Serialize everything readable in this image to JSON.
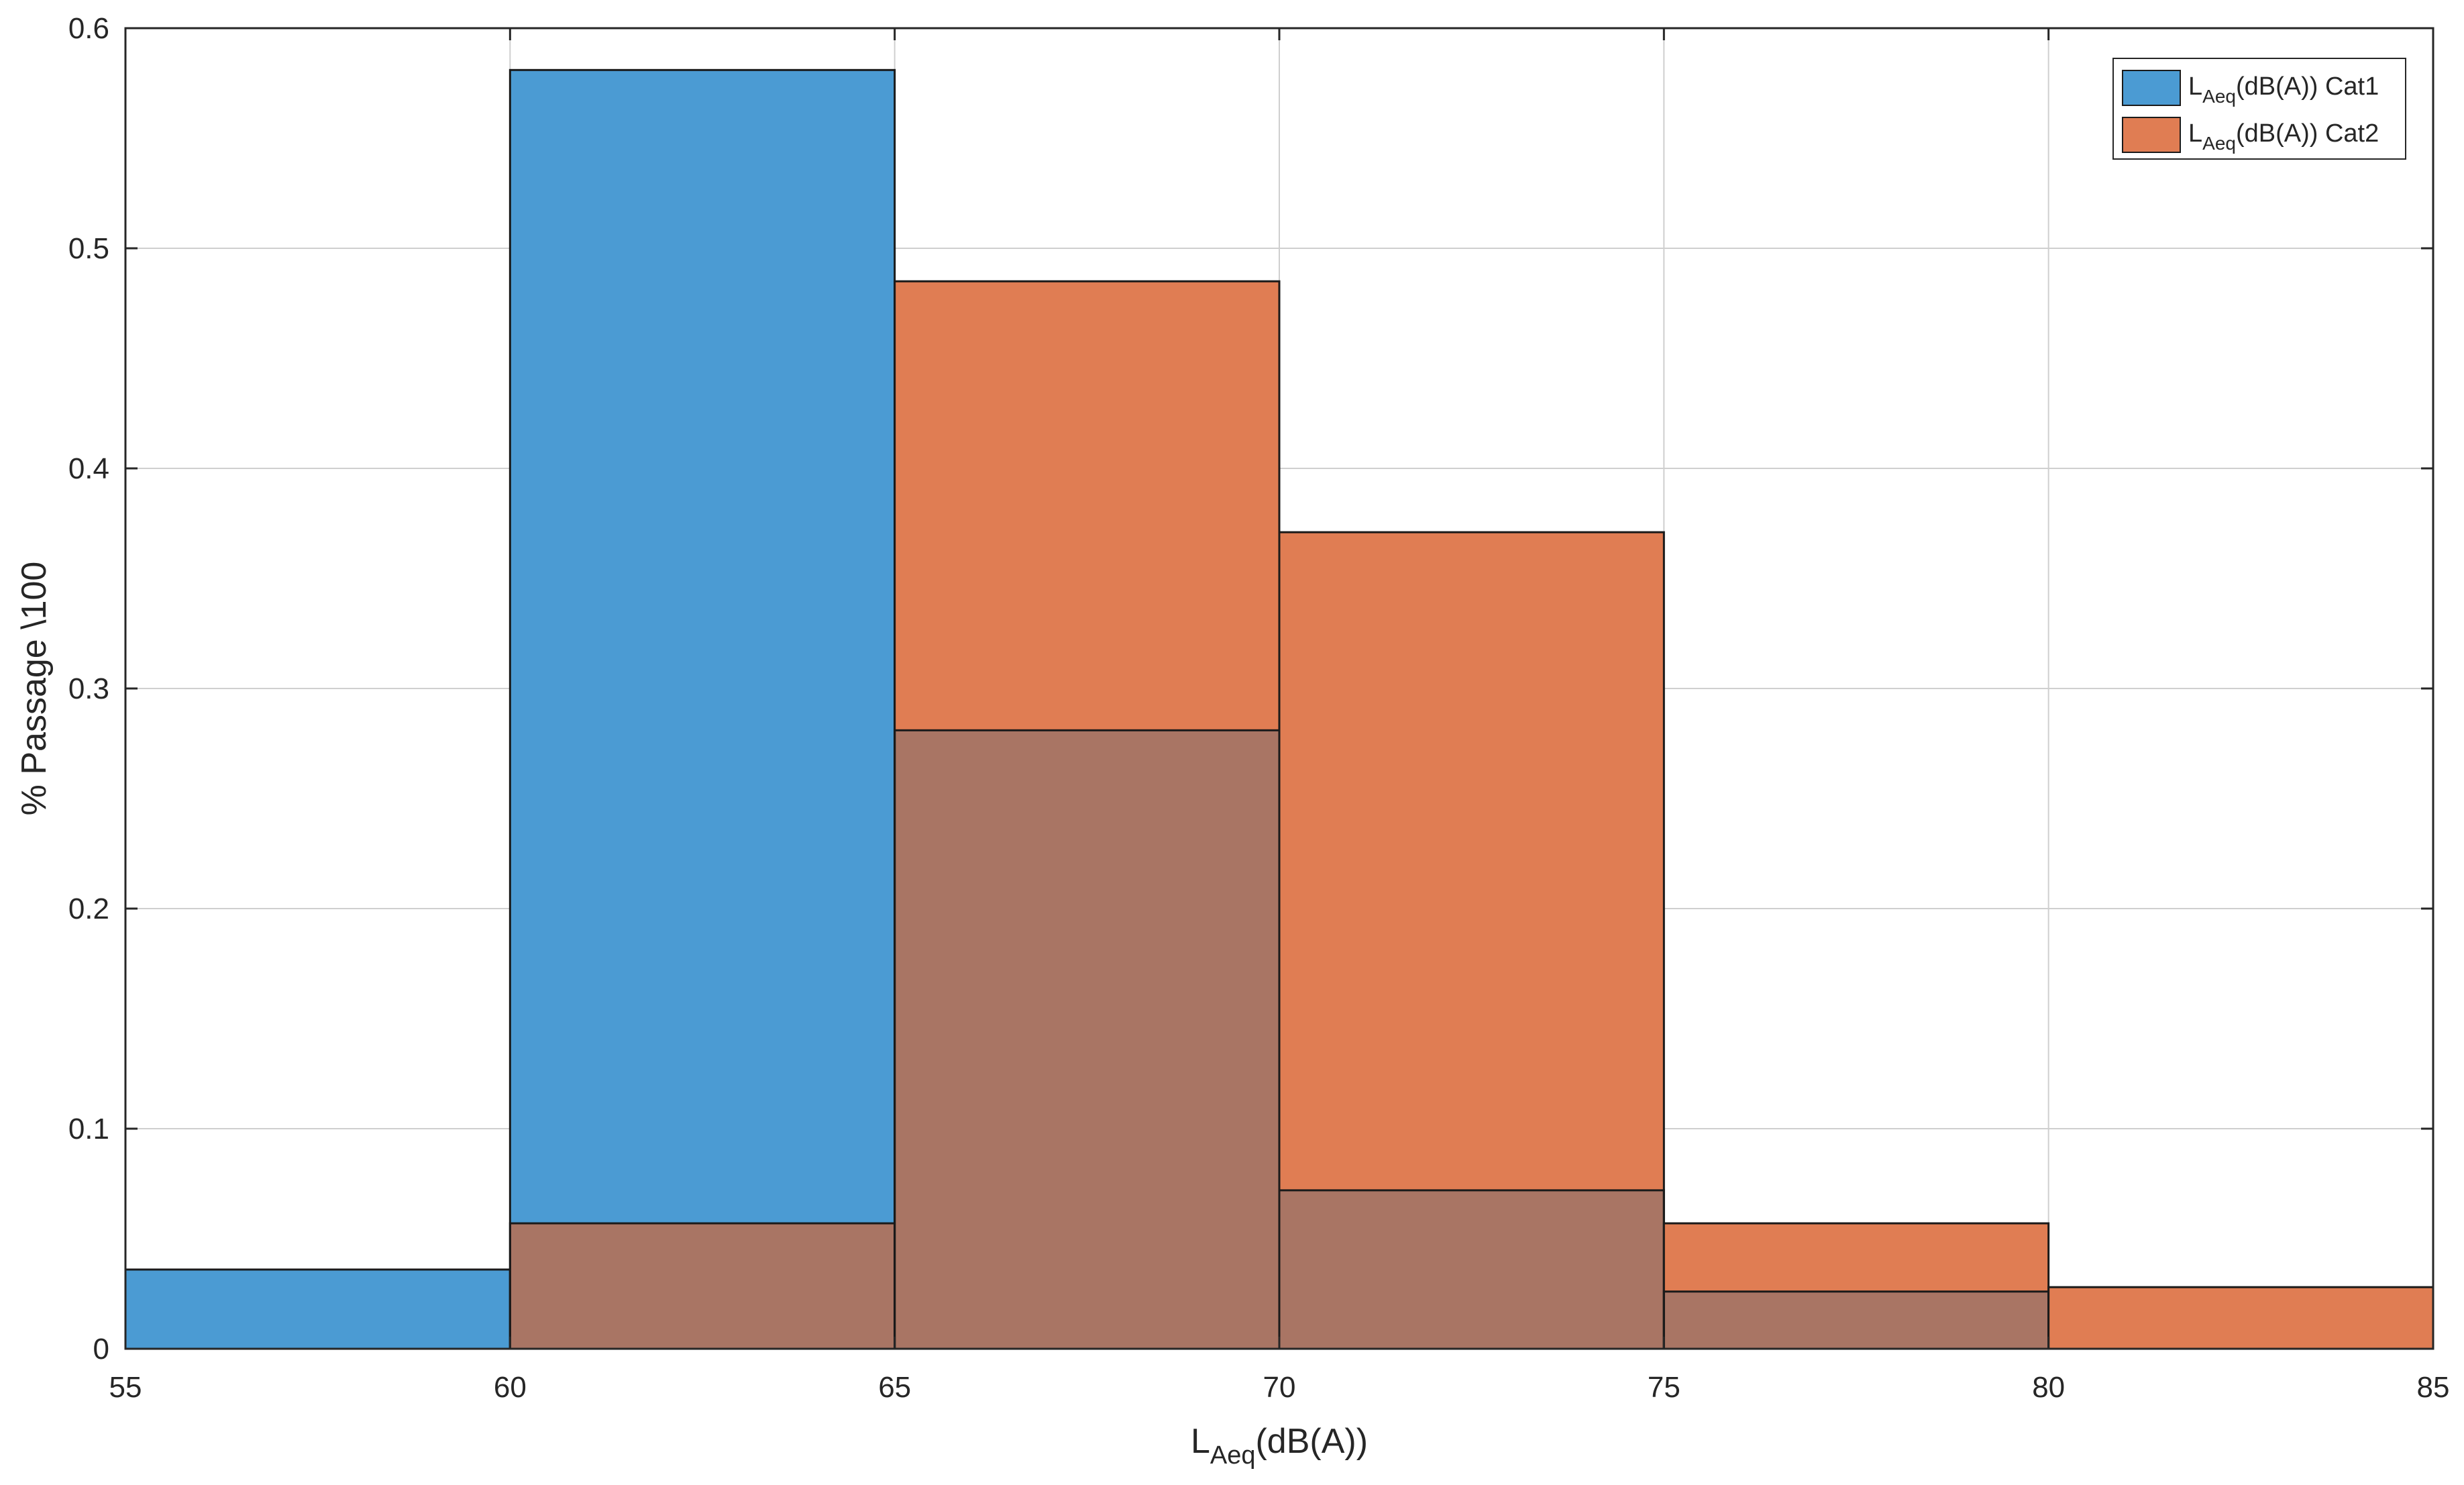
{
  "colors": {
    "cat1": "#4b9bd3",
    "cat2": "#e07d53",
    "overlap": "#a97564",
    "grid": "#cfcfcf",
    "axis": "#262626",
    "edge": "#1a1a1a"
  },
  "chart_data": {
    "type": "bar",
    "subtype": "overlapping-histogram",
    "bin_edges": [
      55,
      60,
      65,
      70,
      75,
      80,
      85
    ],
    "series": [
      {
        "name": "L_Aeq(dB(A)) Cat1",
        "label_main": "L",
        "label_sub": "Aeq",
        "label_rest": "(dB(A)) Cat1",
        "values": [
          0.036,
          0.581,
          0.281,
          0.072,
          0.026,
          0.0
        ]
      },
      {
        "name": "L_Aeq(dB(A)) Cat2",
        "label_main": "L",
        "label_sub": "Aeq",
        "label_rest": "(dB(A)) Cat2",
        "values": [
          0.0,
          0.057,
          0.485,
          0.371,
          0.057,
          0.028
        ]
      }
    ],
    "xlim": [
      55,
      85
    ],
    "ylim": [
      0,
      0.6
    ],
    "xticks": [
      "55",
      "60",
      "65",
      "70",
      "75",
      "80",
      "85"
    ],
    "yticks": [
      "0",
      "0.1",
      "0.2",
      "0.3",
      "0.4",
      "0.5",
      "0.6"
    ],
    "xlabel_main": "L",
    "xlabel_sub": "Aeq",
    "xlabel_rest": "(dB(A))",
    "ylabel": "% Passage \\100",
    "grid": true,
    "legend_position": "top-right"
  }
}
